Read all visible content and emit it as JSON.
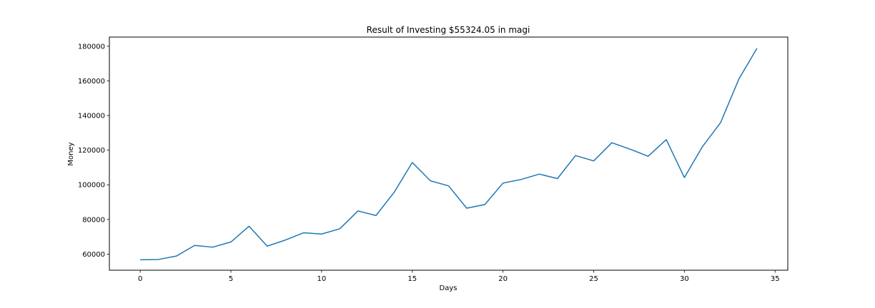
{
  "chart_data": {
    "type": "line",
    "title": "Result of Investing $55324.05 in magi",
    "xlabel": "Days",
    "ylabel": "Money",
    "xlim": [
      -1.7,
      35.7
    ],
    "ylim": [
      50700,
      185300
    ],
    "x_ticks": [
      0,
      5,
      10,
      15,
      20,
      25,
      30,
      35
    ],
    "y_ticks": [
      60000,
      80000,
      100000,
      120000,
      140000,
      160000,
      180000
    ],
    "grid": false,
    "line_color": "#1f77b4",
    "series": [
      {
        "x": [
          0,
          1,
          2,
          3,
          4,
          5,
          6,
          7,
          8,
          9,
          10,
          11,
          12,
          13,
          14,
          15,
          16,
          17,
          18,
          19,
          20,
          21,
          22,
          23,
          24,
          25,
          26,
          27,
          28,
          29,
          30,
          31,
          32,
          33,
          34
        ],
        "values": [
          56700,
          56900,
          58900,
          65000,
          64000,
          67000,
          76100,
          64600,
          68100,
          72300,
          71600,
          74600,
          84900,
          82300,
          95700,
          112900,
          102300,
          99400,
          86500,
          88600,
          101000,
          103100,
          106200,
          103600,
          116900,
          113800,
          124300,
          120600,
          116500,
          126100,
          104200,
          122100,
          136000,
          161000,
          178800
        ]
      }
    ]
  }
}
